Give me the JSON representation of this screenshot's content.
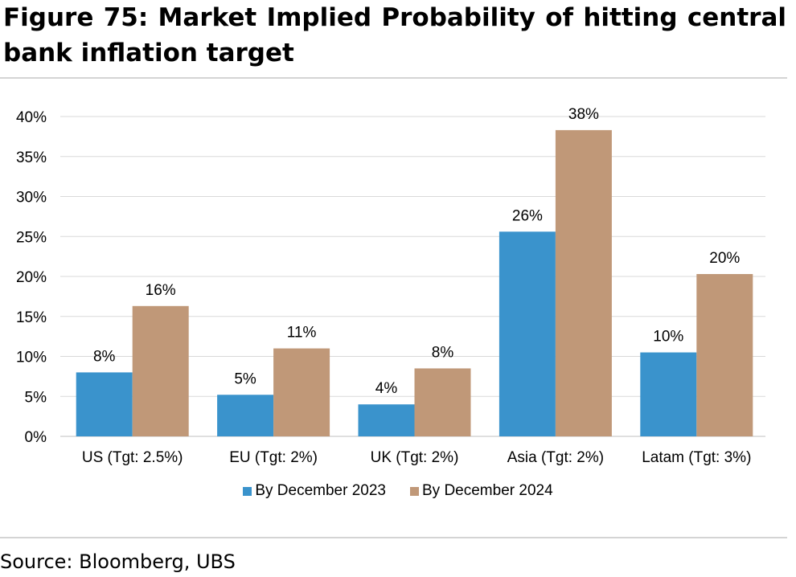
{
  "header": {
    "title": "Figure 75: Market Implied Probability of hitting central bank inflation target"
  },
  "footer": {
    "source": "Source: Bloomberg, UBS"
  },
  "chart_data": {
    "type": "bar",
    "title": "",
    "xlabel": "",
    "ylabel": "",
    "categories": [
      "US (Tgt: 2.5%)",
      "EU (Tgt: 2%)",
      "UK (Tgt: 2%)",
      "Asia (Tgt: 2%)",
      "Latam (Tgt: 3%)"
    ],
    "series": [
      {
        "name": "By December 2023",
        "color": "#3a93cc",
        "values": [
          8,
          5.2,
          4,
          25.6,
          10.5
        ],
        "labels": [
          "8%",
          "5%",
          "4%",
          "26%",
          "10%"
        ]
      },
      {
        "name": "By December 2024",
        "color": "#c09878",
        "values": [
          16.3,
          11,
          8.5,
          38.3,
          20.3
        ],
        "labels": [
          "16%",
          "11%",
          "8%",
          "38%",
          "20%"
        ]
      }
    ],
    "ylim": [
      0,
      40
    ],
    "yticks": [
      "0%",
      "5%",
      "10%",
      "15%",
      "20%",
      "25%",
      "30%",
      "35%",
      "40%"
    ],
    "grid": true,
    "legend_position": "bottom"
  }
}
